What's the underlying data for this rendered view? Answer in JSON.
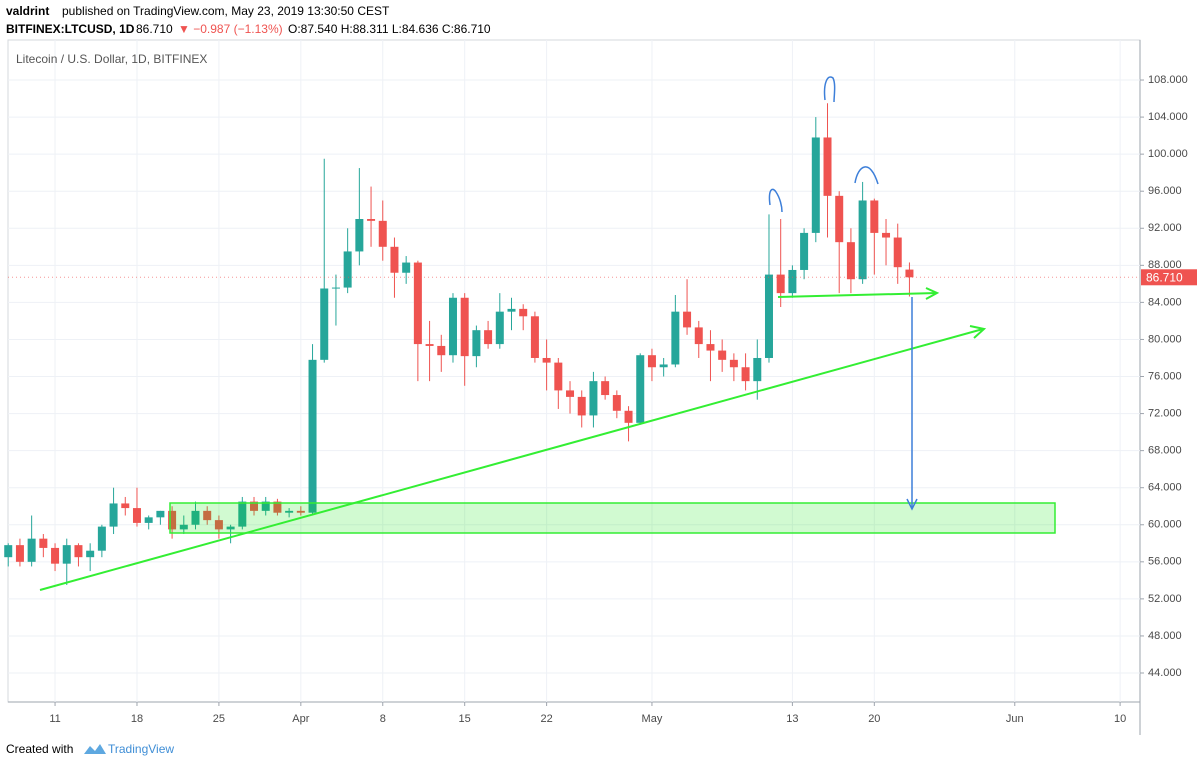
{
  "header": {
    "author": "valdrint",
    "published": "published on TradingView.com, May 23, 2019 13:30:50 CEST",
    "ticker": "BITFINEX:LTCUSD, 1D",
    "last": "86.710",
    "change": "▼ −0.987 (−1.13%)",
    "ohlc": "O:87.540 H:88.311 L:84.636 C:86.710"
  },
  "footer": {
    "created": "Created with",
    "brand": "TradingView"
  },
  "chart_data": {
    "type": "candlestick",
    "title": "Litecoin / U.S. Dollar, 1D, BITFINEX",
    "up_color": "#26a69a",
    "down_color": "#ef5350",
    "grid": true,
    "last_price_label": "86.710",
    "x": [
      -4,
      -3,
      -2,
      -1,
      0,
      1,
      2,
      3,
      4,
      5,
      6,
      7,
      8,
      9,
      10,
      11,
      12,
      13,
      14,
      15,
      16,
      17,
      18,
      19,
      20,
      21,
      22,
      23,
      24,
      25,
      26,
      27,
      28,
      29,
      30,
      31,
      32,
      33,
      34,
      35,
      36,
      37,
      38,
      39,
      40,
      41,
      42,
      43,
      44,
      45,
      46,
      47,
      48,
      49,
      50,
      51,
      52,
      53,
      54,
      55,
      56,
      57,
      58,
      59,
      60,
      61,
      62,
      63,
      64,
      65,
      66,
      67,
      68,
      69,
      70,
      71,
      72,
      73
    ],
    "open": [
      56.5,
      57.8,
      56,
      58.5,
      57.5,
      55.8,
      57.8,
      56.5,
      57.2,
      59.8,
      62.3,
      61.8,
      60.2,
      60.8,
      61.5,
      59.5,
      60,
      61.5,
      60.5,
      59.5,
      59.8,
      62.5,
      61.5,
      62.5,
      61.3,
      61.5,
      61.3,
      77.8,
      85.5,
      85.6,
      89.5,
      93,
      92.8,
      90,
      87.2,
      88.3,
      79.5,
      79.3,
      78.3,
      84.5,
      78.2,
      81,
      79.5,
      83,
      83.3,
      82.5,
      78,
      77.5,
      74.5,
      73.8,
      71.8,
      75.5,
      74,
      72.3,
      71,
      78.3,
      77,
      77.3,
      83,
      81.3,
      79.5,
      78.8,
      77.8,
      77,
      75.5,
      78,
      87,
      85,
      87.5,
      91.5,
      101.8,
      95.5,
      90.5,
      86.5,
      95,
      91.5,
      91,
      87.54
    ],
    "high": [
      58,
      58.5,
      61,
      59,
      58,
      58.5,
      58,
      58,
      60,
      64,
      63,
      64,
      61,
      61.5,
      62,
      61,
      62.5,
      62,
      61,
      60,
      63,
      63,
      63,
      62.8,
      61.8,
      62,
      79.5,
      99.5,
      87,
      92,
      98.5,
      96.5,
      95,
      91,
      89,
      88.5,
      82,
      80.5,
      85,
      85,
      81.5,
      82,
      85,
      84.5,
      83.8,
      83,
      80,
      78,
      75.5,
      74.5,
      76.5,
      76,
      74.5,
      72.8,
      78.5,
      79,
      78,
      84.8,
      86.5,
      82,
      81,
      80,
      78.5,
      78.5,
      80,
      93.5,
      93,
      88,
      92,
      104,
      105.5,
      96,
      92,
      97,
      95.2,
      93,
      92.5,
      88.311
    ],
    "low": [
      55.5,
      55.5,
      55.5,
      56.5,
      55,
      53.5,
      55.5,
      55,
      56.5,
      59,
      61,
      59.8,
      59.5,
      60,
      58.5,
      59,
      59.5,
      60,
      58.5,
      58,
      59.5,
      61,
      61,
      61,
      60.8,
      61,
      61,
      77.5,
      81.5,
      85,
      88,
      90,
      88.5,
      84.5,
      86,
      75.5,
      75.5,
      76.5,
      77.5,
      75,
      77,
      79,
      79,
      81,
      81,
      77.5,
      74.5,
      72.5,
      72,
      70.5,
      70.5,
      73.5,
      71.5,
      69,
      70.8,
      75.5,
      76,
      77,
      80.5,
      78,
      75.5,
      76.5,
      75.5,
      74.5,
      73.5,
      77.5,
      83.5,
      84.5,
      86.5,
      90.5,
      91,
      85,
      85,
      86,
      87,
      88,
      86,
      84.636
    ],
    "close": [
      57.8,
      56,
      58.5,
      57.5,
      55.8,
      57.8,
      56.5,
      57.2,
      59.8,
      62.3,
      61.8,
      60.2,
      60.8,
      61.5,
      59.5,
      60,
      61.5,
      60.5,
      59.5,
      59.8,
      62.5,
      61.5,
      62.5,
      61.3,
      61.5,
      61.3,
      77.8,
      85.5,
      85.6,
      89.5,
      93,
      92.8,
      90,
      87.2,
      88.3,
      79.5,
      79.3,
      78.3,
      84.5,
      78.2,
      81,
      79.5,
      83,
      83.3,
      82.5,
      78,
      77.5,
      74.5,
      73.8,
      71.8,
      75.5,
      74,
      72.3,
      71,
      78.3,
      77,
      77.3,
      83,
      81.3,
      79.5,
      78.8,
      77.8,
      77,
      75.5,
      78,
      87,
      85,
      87.5,
      91.5,
      101.8,
      95.5,
      90.5,
      86.5,
      95,
      91.5,
      91,
      87.8,
      86.71
    ],
    "xlim": [
      -4.02,
      92.7
    ],
    "xticks": [
      {
        "value": 0,
        "label": "11"
      },
      {
        "value": 7,
        "label": "18"
      },
      {
        "value": 14,
        "label": "25"
      },
      {
        "value": 21,
        "label": "Apr"
      },
      {
        "value": 28,
        "label": "8"
      },
      {
        "value": 35,
        "label": "15"
      },
      {
        "value": 42,
        "label": "22"
      },
      {
        "value": 51,
        "label": "May"
      },
      {
        "value": 63,
        "label": "13"
      },
      {
        "value": 70,
        "label": "20"
      },
      {
        "value": 82,
        "label": "Jun"
      },
      {
        "value": 91,
        "label": "10"
      }
    ],
    "ylim": [
      40.87,
      112.32
    ],
    "yticks": [
      {
        "value": 44,
        "label": "44.000"
      },
      {
        "value": 48,
        "label": "48.000"
      },
      {
        "value": 52,
        "label": "52.000"
      },
      {
        "value": 56,
        "label": "56.000"
      },
      {
        "value": 60,
        "label": "60.000"
      },
      {
        "value": 64,
        "label": "64.000"
      },
      {
        "value": 68,
        "label": "68.000"
      },
      {
        "value": 72,
        "label": "72.000"
      },
      {
        "value": 76,
        "label": "76.000"
      },
      {
        "value": 80,
        "label": "80.000"
      },
      {
        "value": 84,
        "label": "84.000"
      },
      {
        "value": 88,
        "label": "88.000"
      },
      {
        "value": 92,
        "label": "92.000"
      },
      {
        "value": 96,
        "label": "96.000"
      },
      {
        "value": 100,
        "label": "100.000"
      },
      {
        "value": 104,
        "label": "104.000"
      },
      {
        "value": 108,
        "label": "108.000"
      }
    ]
  }
}
